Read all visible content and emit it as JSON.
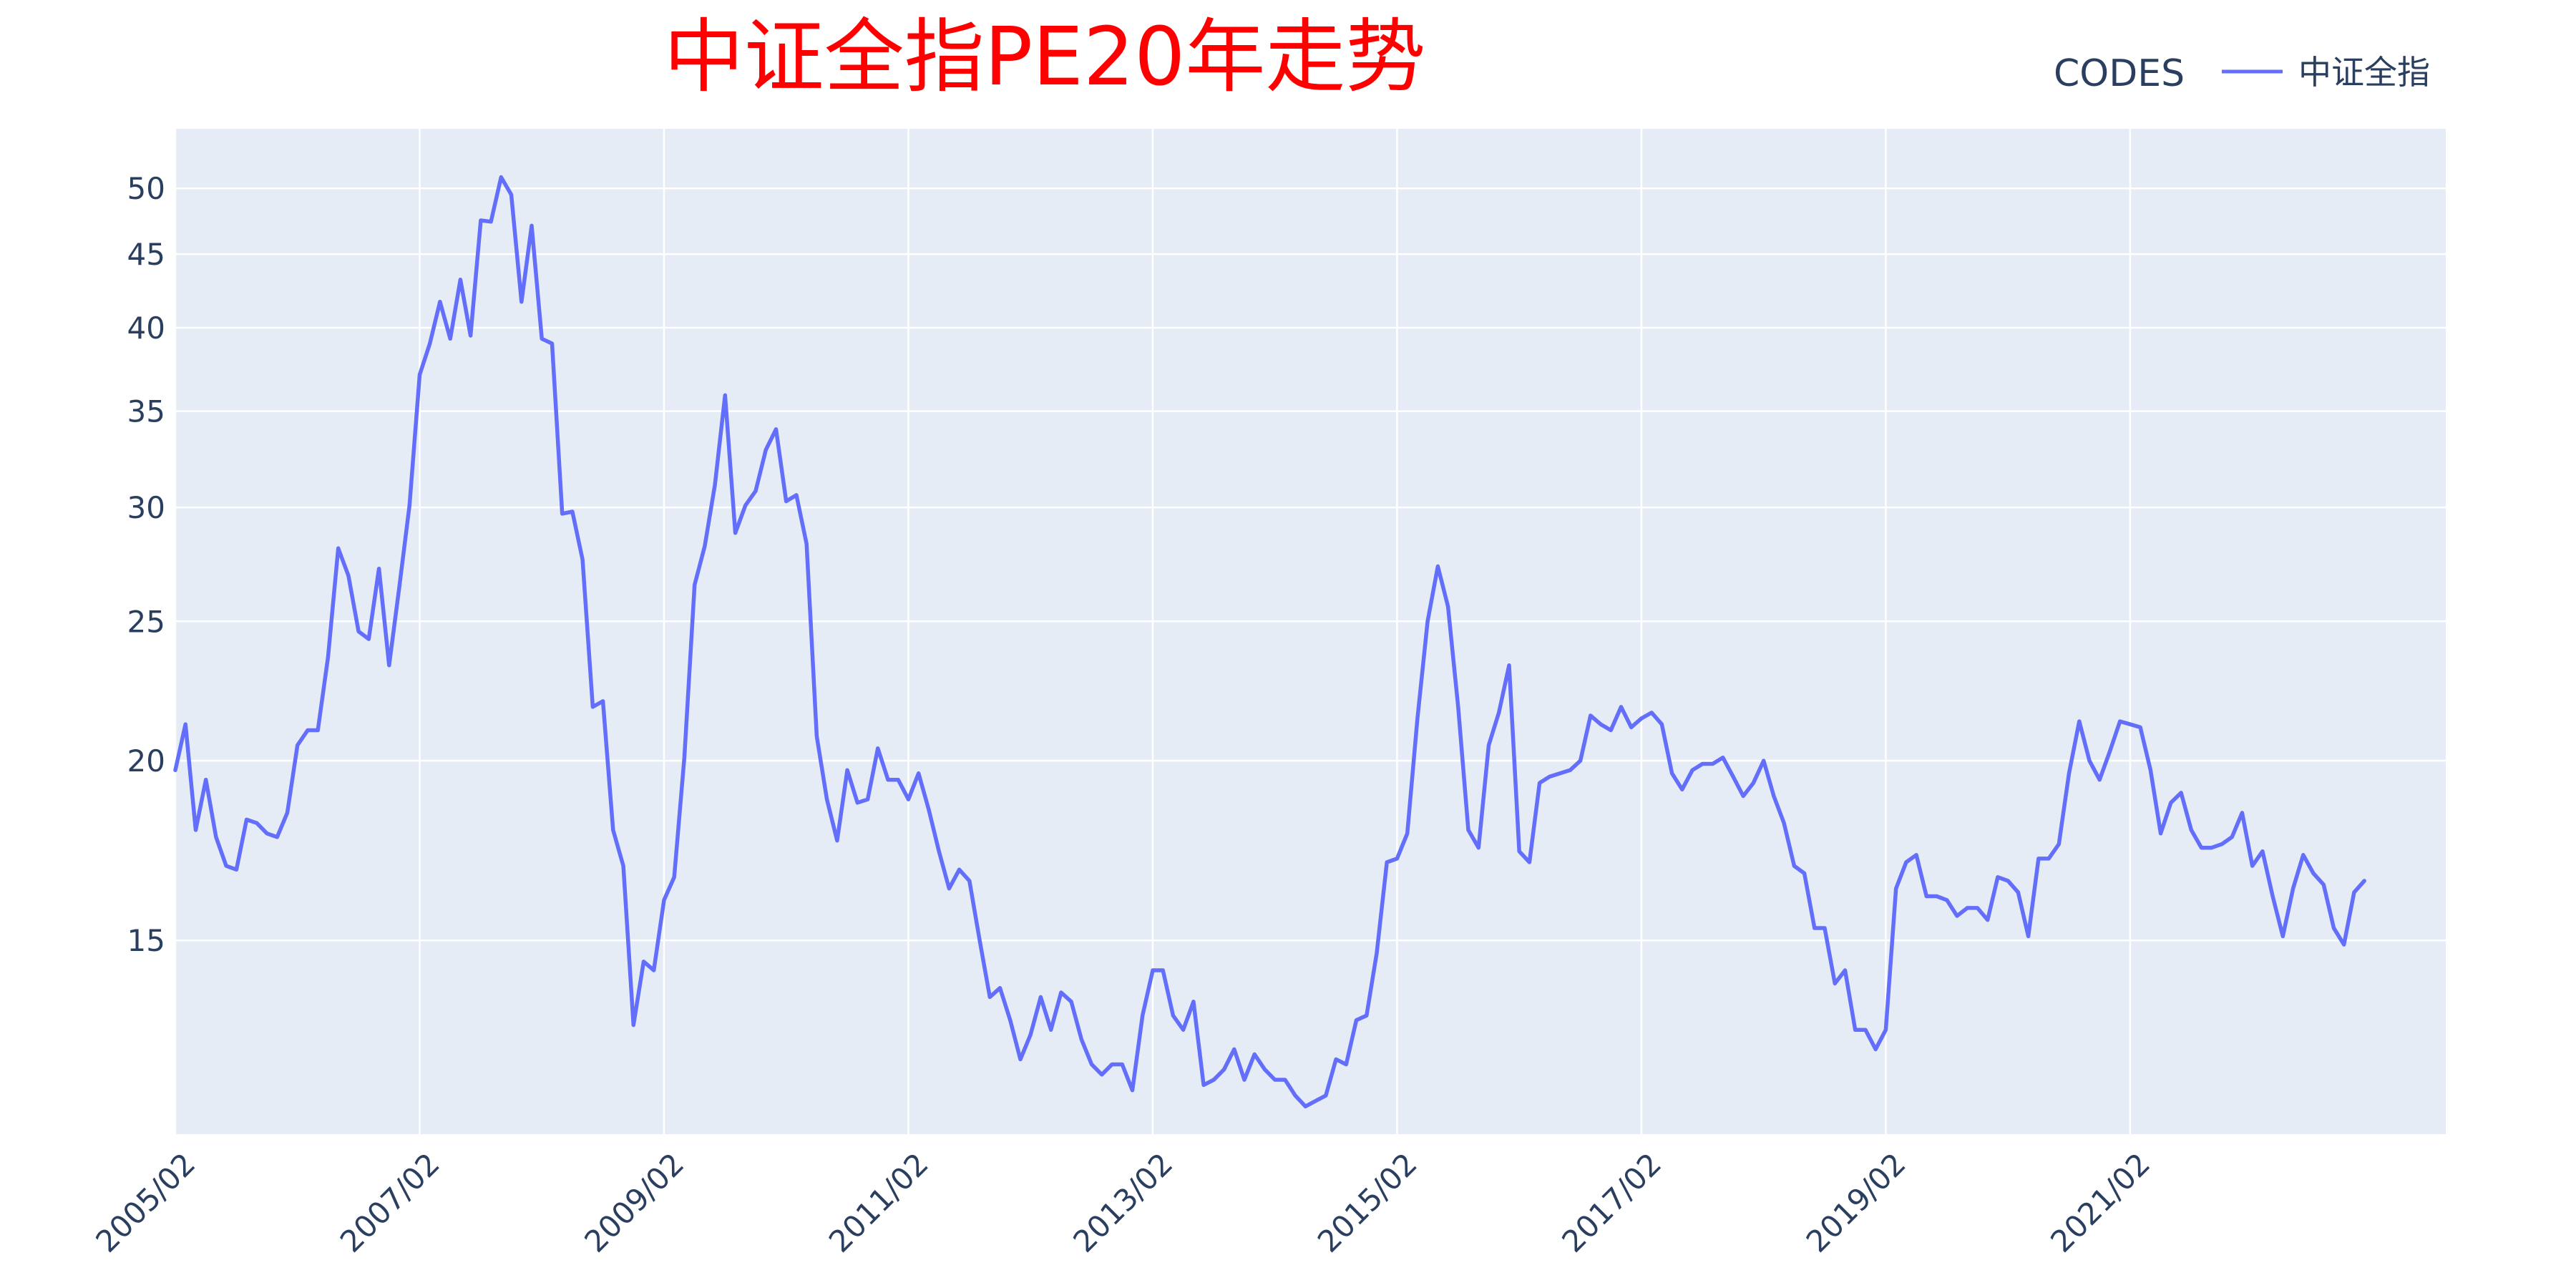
{
  "chart_data": {
    "type": "line",
    "title": "中证全指PE20年走势",
    "title_color": "#ff0000",
    "xlabel": "",
    "ylabel": "",
    "y_scale": "log",
    "ylim": [
      11,
      55
    ],
    "xlim": [
      "2005-02",
      "2023-09"
    ],
    "grid": true,
    "plot_bg": "#e5ecf6",
    "grid_color": "#ffffff",
    "axis_text_color": "#2a3f5f",
    "legend": {
      "title": "CODES",
      "position": "top-right"
    },
    "y_ticks": [
      {
        "value": 15,
        "label": "15"
      },
      {
        "value": 20,
        "label": "20"
      },
      {
        "value": 25,
        "label": "25"
      },
      {
        "value": 30,
        "label": "30"
      },
      {
        "value": 35,
        "label": "35"
      },
      {
        "value": 40,
        "label": "40"
      },
      {
        "value": 45,
        "label": "45"
      },
      {
        "value": 50,
        "label": "50"
      }
    ],
    "x_ticks": [
      {
        "value": "2005-02",
        "label": "2005/02"
      },
      {
        "value": "2007-02",
        "label": "2007/02"
      },
      {
        "value": "2009-02",
        "label": "2009/02"
      },
      {
        "value": "2011-02",
        "label": "2011/02"
      },
      {
        "value": "2013-02",
        "label": "2013/02"
      },
      {
        "value": "2015-02",
        "label": "2015/02"
      },
      {
        "value": "2017-02",
        "label": "2017/02"
      },
      {
        "value": "2019-02",
        "label": "2019/02"
      },
      {
        "value": "2021-02",
        "label": "2021/02"
      }
    ],
    "series": [
      {
        "name": "中证全指",
        "color": "#636efa",
        "points": [
          [
            "2005-02",
            19.7
          ],
          [
            "2005-03",
            21.2
          ],
          [
            "2005-04",
            17.9
          ],
          [
            "2005-05",
            19.4
          ],
          [
            "2005-06",
            17.7
          ],
          [
            "2005-07",
            16.9
          ],
          [
            "2005-08",
            16.8
          ],
          [
            "2005-09",
            18.2
          ],
          [
            "2005-10",
            18.1
          ],
          [
            "2005-11",
            17.8
          ],
          [
            "2005-12",
            17.7
          ],
          [
            "2006-01",
            18.4
          ],
          [
            "2006-02",
            20.5
          ],
          [
            "2006-03",
            21.0
          ],
          [
            "2006-04",
            21.0
          ],
          [
            "2006-05",
            23.6
          ],
          [
            "2006-06",
            28.1
          ],
          [
            "2006-07",
            26.9
          ],
          [
            "2006-08",
            24.6
          ],
          [
            "2006-09",
            24.3
          ],
          [
            "2006-10",
            27.2
          ],
          [
            "2006-11",
            23.3
          ],
          [
            "2006-12",
            26.4
          ],
          [
            "2007-01",
            30.1
          ],
          [
            "2007-02",
            37.1
          ],
          [
            "2007-03",
            39.0
          ],
          [
            "2007-04",
            41.7
          ],
          [
            "2007-05",
            39.3
          ],
          [
            "2007-06",
            43.2
          ],
          [
            "2007-07",
            39.5
          ],
          [
            "2007-08",
            47.5
          ],
          [
            "2007-09",
            47.4
          ],
          [
            "2007-10",
            50.9
          ],
          [
            "2007-11",
            49.5
          ],
          [
            "2007-12",
            41.7
          ],
          [
            "2008-01",
            47.1
          ],
          [
            "2008-02",
            39.3
          ],
          [
            "2008-03",
            39.0
          ],
          [
            "2008-04",
            29.7
          ],
          [
            "2008-05",
            29.8
          ],
          [
            "2008-06",
            27.6
          ],
          [
            "2008-07",
            21.8
          ],
          [
            "2008-08",
            22.0
          ],
          [
            "2008-09",
            17.9
          ],
          [
            "2008-10",
            16.9
          ],
          [
            "2008-11",
            13.1
          ],
          [
            "2008-12",
            14.5
          ],
          [
            "2009-01",
            14.3
          ],
          [
            "2009-02",
            16.0
          ],
          [
            "2009-03",
            16.6
          ],
          [
            "2009-04",
            20.1
          ],
          [
            "2009-05",
            26.5
          ],
          [
            "2009-06",
            28.2
          ],
          [
            "2009-07",
            31.1
          ],
          [
            "2009-08",
            35.9
          ],
          [
            "2009-09",
            28.8
          ],
          [
            "2009-10",
            30.1
          ],
          [
            "2009-11",
            30.8
          ],
          [
            "2009-12",
            32.9
          ],
          [
            "2010-01",
            34.0
          ],
          [
            "2010-02",
            30.3
          ],
          [
            "2010-03",
            30.6
          ],
          [
            "2010-04",
            28.3
          ],
          [
            "2010-05",
            20.8
          ],
          [
            "2010-06",
            18.8
          ],
          [
            "2010-07",
            17.6
          ],
          [
            "2010-08",
            19.7
          ],
          [
            "2010-09",
            18.7
          ],
          [
            "2010-10",
            18.8
          ],
          [
            "2010-11",
            20.4
          ],
          [
            "2010-12",
            19.4
          ],
          [
            "2011-01",
            19.4
          ],
          [
            "2011-02",
            18.8
          ],
          [
            "2011-03",
            19.6
          ],
          [
            "2011-04",
            18.5
          ],
          [
            "2011-05",
            17.3
          ],
          [
            "2011-06",
            16.3
          ],
          [
            "2011-07",
            16.8
          ],
          [
            "2011-08",
            16.5
          ],
          [
            "2011-09",
            15.0
          ],
          [
            "2011-10",
            13.7
          ],
          [
            "2011-11",
            13.9
          ],
          [
            "2011-12",
            13.2
          ],
          [
            "2012-01",
            12.4
          ],
          [
            "2012-02",
            12.9
          ],
          [
            "2012-03",
            13.7
          ],
          [
            "2012-04",
            13.0
          ],
          [
            "2012-05",
            13.8
          ],
          [
            "2012-06",
            13.6
          ],
          [
            "2012-07",
            12.8
          ],
          [
            "2012-08",
            12.3
          ],
          [
            "2012-09",
            12.1
          ],
          [
            "2012-10",
            12.3
          ],
          [
            "2012-11",
            12.3
          ],
          [
            "2012-12",
            11.8
          ],
          [
            "2013-01",
            13.3
          ],
          [
            "2013-02",
            14.3
          ],
          [
            "2013-03",
            14.3
          ],
          [
            "2013-04",
            13.3
          ],
          [
            "2013-05",
            13.0
          ],
          [
            "2013-06",
            13.6
          ],
          [
            "2013-07",
            11.9
          ],
          [
            "2013-08",
            12.0
          ],
          [
            "2013-09",
            12.2
          ],
          [
            "2013-10",
            12.6
          ],
          [
            "2013-11",
            12.0
          ],
          [
            "2013-12",
            12.5
          ],
          [
            "2014-01",
            12.2
          ],
          [
            "2014-02",
            12.0
          ],
          [
            "2014-03",
            12.0
          ],
          [
            "2014-04",
            11.7
          ],
          [
            "2014-05",
            11.5
          ],
          [
            "2014-06",
            11.6
          ],
          [
            "2014-07",
            11.7
          ],
          [
            "2014-08",
            12.4
          ],
          [
            "2014-09",
            12.3
          ],
          [
            "2014-10",
            13.2
          ],
          [
            "2014-11",
            13.3
          ],
          [
            "2014-12",
            14.7
          ],
          [
            "2015-01",
            17.0
          ],
          [
            "2015-02",
            17.1
          ],
          [
            "2015-03",
            17.8
          ],
          [
            "2015-04",
            21.4
          ],
          [
            "2015-05",
            25.0
          ],
          [
            "2015-06",
            27.3
          ],
          [
            "2015-07",
            25.6
          ],
          [
            "2015-08",
            21.8
          ],
          [
            "2015-09",
            17.9
          ],
          [
            "2015-10",
            17.4
          ],
          [
            "2015-11",
            20.5
          ],
          [
            "2015-12",
            21.6
          ],
          [
            "2016-01",
            23.3
          ],
          [
            "2016-02",
            17.3
          ],
          [
            "2016-03",
            17.0
          ],
          [
            "2016-04",
            19.3
          ],
          [
            "2016-05",
            19.5
          ],
          [
            "2016-06",
            19.6
          ],
          [
            "2016-07",
            19.7
          ],
          [
            "2016-08",
            20.0
          ],
          [
            "2016-09",
            21.5
          ],
          [
            "2016-10",
            21.2
          ],
          [
            "2016-11",
            21.0
          ],
          [
            "2016-12",
            21.8
          ],
          [
            "2017-01",
            21.1
          ],
          [
            "2017-02",
            21.4
          ],
          [
            "2017-03",
            21.6
          ],
          [
            "2017-04",
            21.2
          ],
          [
            "2017-05",
            19.6
          ],
          [
            "2017-06",
            19.1
          ],
          [
            "2017-07",
            19.7
          ],
          [
            "2017-08",
            19.9
          ],
          [
            "2017-09",
            19.9
          ],
          [
            "2017-10",
            20.1
          ],
          [
            "2017-11",
            19.5
          ],
          [
            "2017-12",
            18.9
          ],
          [
            "2018-01",
            19.3
          ],
          [
            "2018-02",
            20.0
          ],
          [
            "2018-03",
            18.9
          ],
          [
            "2018-04",
            18.1
          ],
          [
            "2018-05",
            16.9
          ],
          [
            "2018-06",
            16.7
          ],
          [
            "2018-07",
            15.3
          ],
          [
            "2018-08",
            15.3
          ],
          [
            "2018-09",
            14.0
          ],
          [
            "2018-10",
            14.3
          ],
          [
            "2018-11",
            13.0
          ],
          [
            "2018-12",
            13.0
          ],
          [
            "2019-01",
            12.6
          ],
          [
            "2019-02",
            13.0
          ],
          [
            "2019-03",
            16.3
          ],
          [
            "2019-04",
            17.0
          ],
          [
            "2019-05",
            17.2
          ],
          [
            "2019-06",
            16.1
          ],
          [
            "2019-07",
            16.1
          ],
          [
            "2019-08",
            16.0
          ],
          [
            "2019-09",
            15.6
          ],
          [
            "2019-10",
            15.8
          ],
          [
            "2019-11",
            15.8
          ],
          [
            "2019-12",
            15.5
          ],
          [
            "2020-01",
            16.6
          ],
          [
            "2020-02",
            16.5
          ],
          [
            "2020-03",
            16.2
          ],
          [
            "2020-04",
            15.1
          ],
          [
            "2020-05",
            17.1
          ],
          [
            "2020-06",
            17.1
          ],
          [
            "2020-07",
            17.5
          ],
          [
            "2020-08",
            19.6
          ],
          [
            "2020-09",
            21.3
          ],
          [
            "2020-10",
            20.0
          ],
          [
            "2020-11",
            19.4
          ],
          [
            "2020-12",
            20.3
          ],
          [
            "2021-01",
            21.3
          ],
          [
            "2021-02",
            21.2
          ],
          [
            "2021-03",
            21.1
          ],
          [
            "2021-04",
            19.7
          ],
          [
            "2021-05",
            17.8
          ],
          [
            "2021-06",
            18.7
          ],
          [
            "2021-07",
            19.0
          ],
          [
            "2021-08",
            17.9
          ],
          [
            "2021-09",
            17.4
          ],
          [
            "2021-10",
            17.4
          ],
          [
            "2021-11",
            17.5
          ],
          [
            "2021-12",
            17.7
          ],
          [
            "2022-01",
            18.4
          ],
          [
            "2022-02",
            16.9
          ],
          [
            "2022-03",
            17.3
          ],
          [
            "2022-04",
            16.1
          ],
          [
            "2022-05",
            15.1
          ],
          [
            "2022-06",
            16.3
          ],
          [
            "2022-07",
            17.2
          ],
          [
            "2022-08",
            16.7
          ],
          [
            "2022-09",
            16.4
          ],
          [
            "2022-10",
            15.3
          ],
          [
            "2022-11",
            14.9
          ],
          [
            "2022-12",
            16.2
          ],
          [
            "2023-01",
            16.5
          ]
        ]
      }
    ]
  }
}
